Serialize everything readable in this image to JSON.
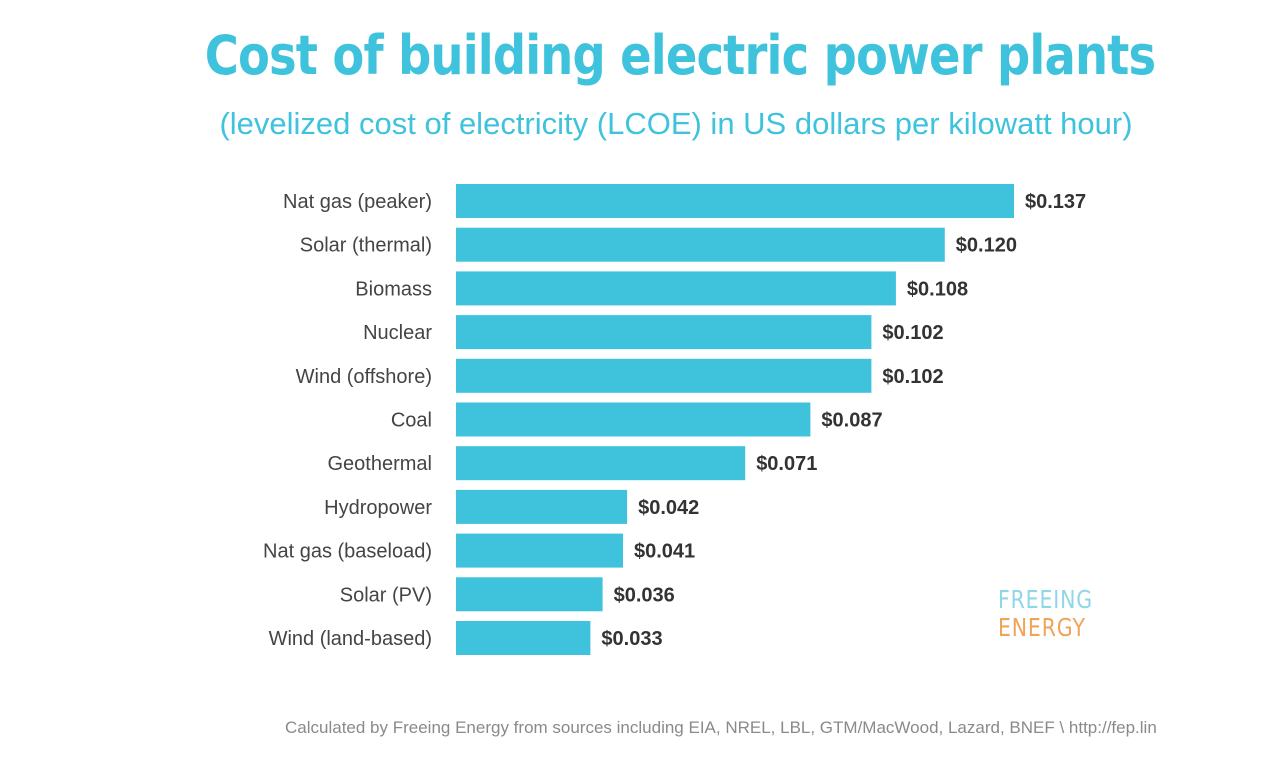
{
  "chart_data": {
    "type": "bar",
    "orientation": "horizontal",
    "title": "Cost of building electric power plants",
    "subtitle": "(levelized cost of electricity (LCOE) in US dollars per kilowatt hour)",
    "categories": [
      "Nat gas (peaker)",
      "Solar (thermal)",
      "Biomass",
      "Nuclear",
      "Wind (offshore)",
      "Coal",
      "Geothermal",
      "Hydropower",
      "Nat gas (baseload)",
      "Solar (PV)",
      "Wind (land-based)"
    ],
    "values": [
      0.137,
      0.12,
      0.108,
      0.102,
      0.102,
      0.087,
      0.071,
      0.042,
      0.041,
      0.036,
      0.033
    ],
    "value_labels": [
      "$0.137",
      "$0.120",
      "$0.108",
      "$0.102",
      "$0.102",
      "$0.087",
      "$0.071",
      "$0.042",
      "$0.041",
      "$0.036",
      "$0.033"
    ],
    "xlim": [
      0,
      0.137
    ],
    "grid": false,
    "legend": "none",
    "bar_color": "#3fc3dc"
  },
  "logo": {
    "line1": "FREEING",
    "line2": "ENERGY"
  },
  "source": "Calculated by Freeing Energy from sources including EIA, NREL, LBL, GTM/MacWood, Lazard, BNEF \\ http://fep.lin"
}
